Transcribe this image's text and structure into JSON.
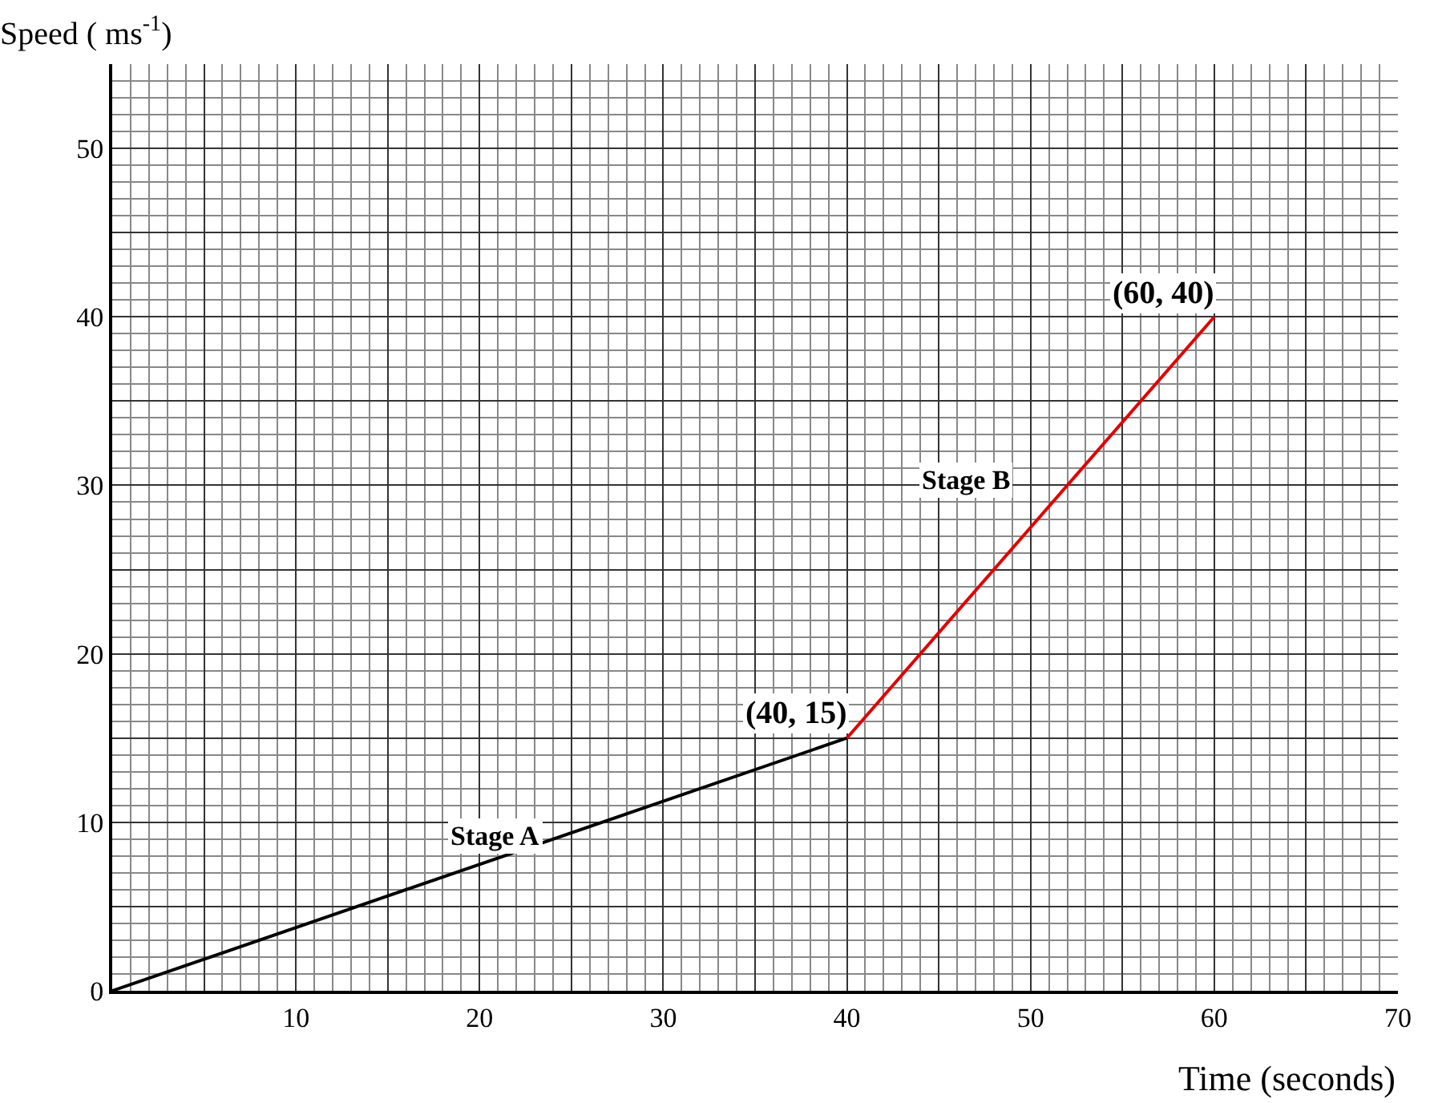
{
  "chart_data": {
    "type": "line",
    "xlabel": "Time (seconds)",
    "ylabel": "Speed ( ms$^{-1}$)",
    "series": [
      {
        "name": "Stage A",
        "color": "#000000",
        "x": [
          0,
          40
        ],
        "values": [
          0,
          15
        ]
      },
      {
        "name": "Stage B",
        "color": "#e00000",
        "x": [
          40,
          60
        ],
        "values": [
          15,
          40
        ]
      }
    ],
    "annotations": [
      {
        "text": "(40, 15)",
        "x": 40,
        "y": 15
      },
      {
        "text": "(60, 40)",
        "x": 60,
        "y": 40
      }
    ],
    "xlim": [
      0,
      70
    ],
    "ylim": [
      0,
      55
    ],
    "xticks": [
      {
        "value": 0,
        "label": null
      },
      {
        "value": 5,
        "label": null
      },
      10,
      {
        "value": 15,
        "label": null
      },
      20,
      {
        "value": 25,
        "label": null
      },
      30,
      {
        "value": 35,
        "label": null
      },
      40,
      {
        "value": 45,
        "label": null
      },
      50,
      {
        "value": 55,
        "label": null
      },
      60,
      {
        "value": 65,
        "label": null
      },
      70
    ],
    "yticks": [
      0,
      {
        "value": 5,
        "label": null
      },
      10,
      {
        "value": 15,
        "label": null
      },
      20,
      {
        "value": 25,
        "label": null
      },
      30,
      {
        "value": 35,
        "label": null
      },
      40,
      {
        "value": 45,
        "label": null
      },
      50
    ],
    "grid": true,
    "legend": false,
    "marker": "none",
    "line_style": "solid"
  }
}
